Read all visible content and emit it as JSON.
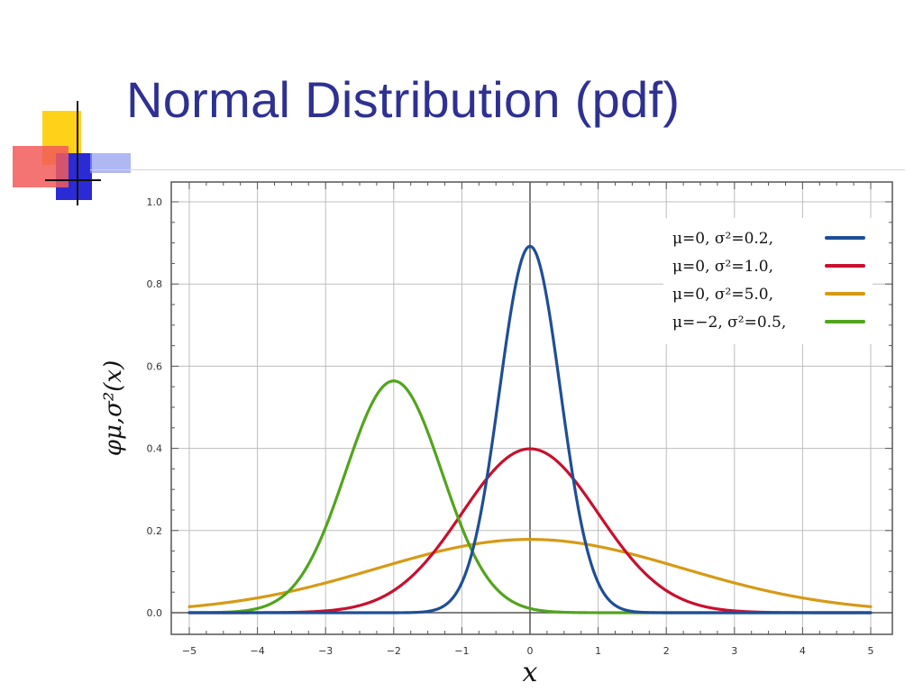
{
  "slide": {
    "title": "Normal Distribution (pdf)"
  },
  "chart_data": {
    "type": "line",
    "title": "",
    "xlabel": "x",
    "ylabel": "φμ,σ²(x)",
    "xlim": [
      -5,
      5
    ],
    "ylim": [
      0,
      1.0
    ],
    "x_ticks": [
      -5,
      -4,
      -3,
      -2,
      -1,
      0,
      1,
      2,
      3,
      4,
      5
    ],
    "y_ticks": [
      "0.0",
      "0.2",
      "0.4",
      "0.6",
      "0.8",
      "1.0"
    ],
    "grid": true,
    "legend_position": "top-right",
    "series": [
      {
        "name": "μ=0,   σ²=0.2,",
        "mu": 0,
        "variance": 0.2,
        "color": "#1f4e96",
        "peak": 0.89
      },
      {
        "name": "μ=0,   σ²=1.0,",
        "mu": 0,
        "variance": 1.0,
        "color": "#c8102e",
        "peak": 0.4
      },
      {
        "name": "μ=0,   σ²=5.0,",
        "mu": 0,
        "variance": 5.0,
        "color": "#d69a16",
        "peak": 0.18
      },
      {
        "name": "μ=−2, σ²=0.5,",
        "mu": -2,
        "variance": 0.5,
        "color": "#52a41d",
        "peak": 0.56
      }
    ]
  }
}
